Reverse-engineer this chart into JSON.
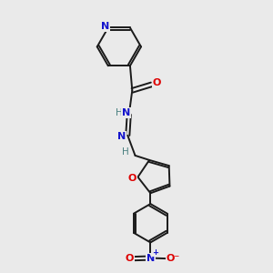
{
  "bg_color": "#eaeaea",
  "bond_color": "#1a1a1a",
  "N_color": "#1414cc",
  "O_color": "#dd0000",
  "H_color": "#4a8080",
  "line_width": 1.4,
  "figsize": [
    3.0,
    3.0
  ],
  "dpi": 100,
  "xlim": [
    0,
    10
  ],
  "ylim": [
    0,
    10
  ]
}
